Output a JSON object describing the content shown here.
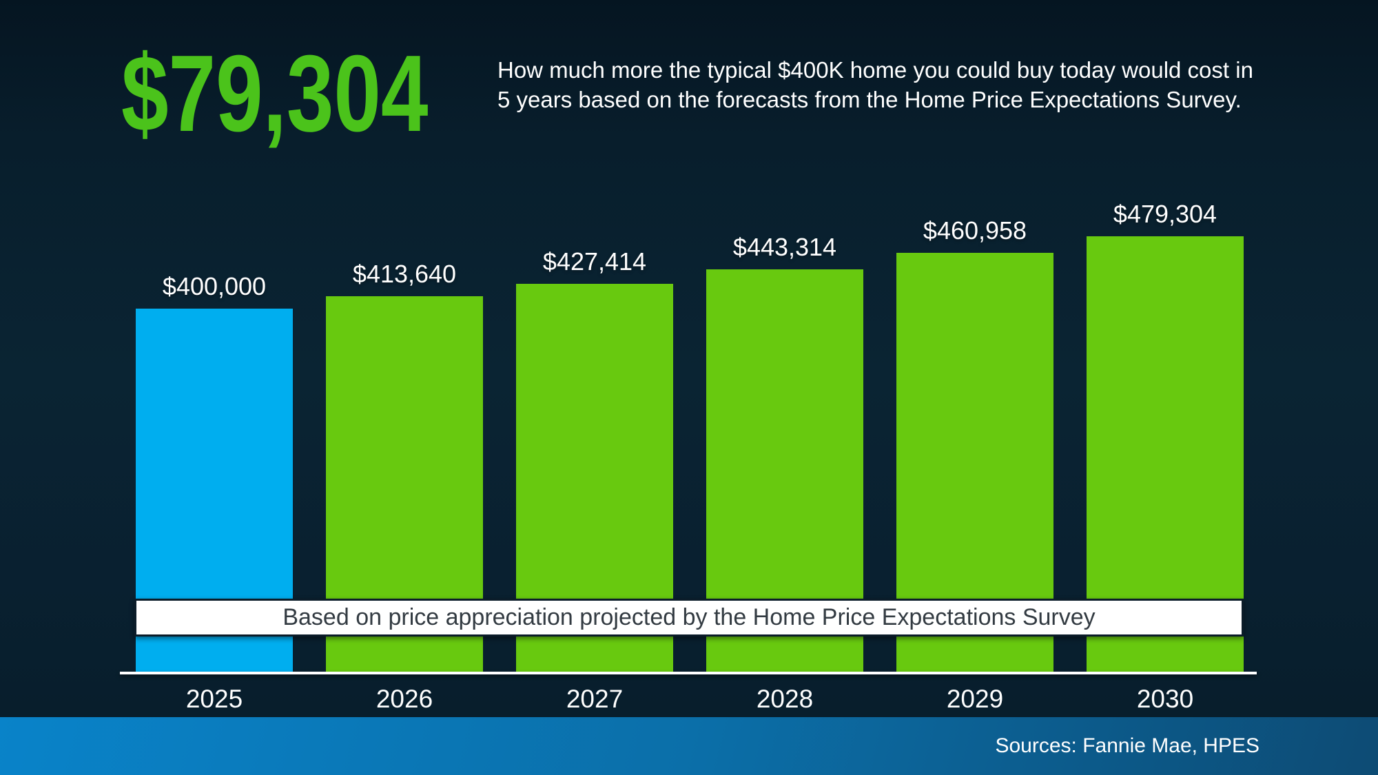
{
  "page": {
    "headline": "$79,304",
    "description_lines": [
      "How much more the typical $400K home you could buy today would cost in",
      "5 years based on the forecasts from the Home Price Expectations Survey."
    ]
  },
  "chart_data": {
    "type": "bar",
    "title": "",
    "categories": [
      "2025",
      "2026",
      "2027",
      "2028",
      "2029",
      "2030"
    ],
    "values": [
      400000,
      413640,
      427414,
      443314,
      460958,
      479304
    ],
    "value_labels": [
      "$400,000",
      "$413,640",
      "$427,414",
      "$443,314",
      "$460,958",
      "$479,304"
    ],
    "highlight_index": 0,
    "ylim": [
      0,
      479304
    ],
    "grid": false,
    "legend": "none",
    "overlay_banner": "Based on price appreciation projected by the Home Price Expectations Survey"
  },
  "footer": {
    "sources": "Sources: Fannie Mae, HPES"
  },
  "colors": {
    "headline_green": "#4BC31B",
    "bar_green": "#68C90F",
    "bar_blue": "#00AEEF",
    "banner_text": "#333B42",
    "background_top": "#051521",
    "background_mid": "#0A2433",
    "footer_left": "#0983C9",
    "footer_right": "#0D4B74",
    "axis_white": "#FFFFFF"
  }
}
